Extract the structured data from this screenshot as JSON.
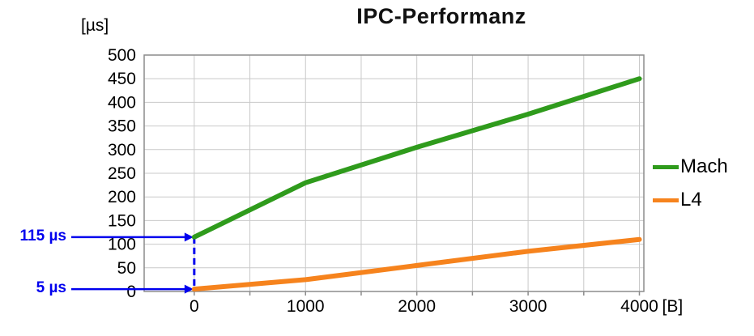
{
  "title": "IPC-Performanz",
  "y_axis_unit": "[µs]",
  "x_axis_unit": "[B]",
  "annotations": {
    "color": "#0000ee",
    "items": [
      {
        "label": "115 µs",
        "value": 115
      },
      {
        "label": "5 µs",
        "value": 5
      }
    ]
  },
  "chart_data": {
    "type": "line",
    "title": "IPC-Performanz",
    "xlabel": "[B]",
    "ylabel": "[µs]",
    "x": [
      0,
      1000,
      2000,
      3000,
      4000
    ],
    "series": [
      {
        "name": "Mach",
        "color": "#2f9b1c",
        "values": [
          115,
          230,
          305,
          375,
          450
        ]
      },
      {
        "name": "L4",
        "color": "#f6831d",
        "values": [
          5,
          25,
          55,
          85,
          110
        ]
      }
    ],
    "ylim": [
      0,
      500
    ],
    "xlim": [
      -450,
      4040
    ],
    "y_ticks": [
      0,
      50,
      100,
      150,
      200,
      250,
      300,
      350,
      400,
      450,
      500
    ],
    "x_ticks": [
      0,
      1000,
      2000,
      3000,
      4000
    ],
    "x_grid_step": 500,
    "grid": true,
    "legend_position": "right",
    "grid_color": "#c9c9c9",
    "border_color": "#8c8c8c"
  }
}
